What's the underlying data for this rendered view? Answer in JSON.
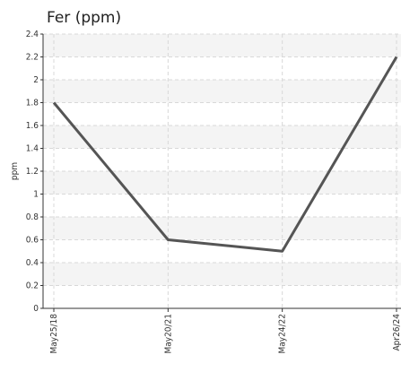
{
  "chart_data": {
    "type": "line",
    "title": "Fer (ppm)",
    "y_label": "ppm",
    "categories": [
      "May25/18",
      "May20/21",
      "May24/22",
      "Apr26/24"
    ],
    "series": [
      {
        "name": "Fer",
        "color": "#555555",
        "values": [
          1.8,
          0.6,
          0.5,
          2.2
        ]
      }
    ],
    "ylim": [
      0,
      2.4
    ],
    "yticks": [
      0,
      0.2,
      0.4,
      0.6,
      0.8,
      1,
      1.2,
      1.4,
      1.6,
      1.8,
      2,
      2.2,
      2.4
    ],
    "grid": true
  }
}
